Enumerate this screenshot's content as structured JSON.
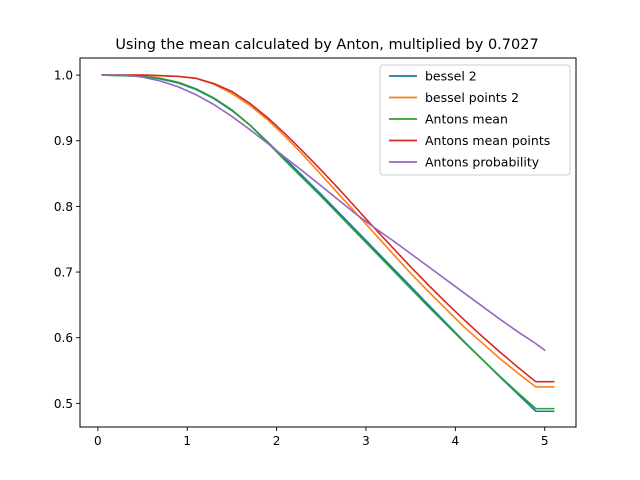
{
  "chart_data": {
    "type": "line",
    "title": "Using the mean calculated by Anton, multiplied by 0.7027",
    "xlabel": "",
    "ylabel": "",
    "xlim": [
      -0.2,
      5.35
    ],
    "ylim": [
      0.464,
      1.026
    ],
    "x_ticks": [
      0,
      1,
      2,
      3,
      4,
      5
    ],
    "y_ticks": [
      0.5,
      0.6,
      0.7,
      0.8,
      0.9,
      1.0
    ],
    "y_tick_labels": [
      "0.5",
      "0.6",
      "0.7",
      "0.8",
      "0.9",
      "1.0"
    ],
    "grid": false,
    "legend_position": "top-right",
    "series": [
      {
        "name": "bessel 2",
        "color": "#1f77b4",
        "x": [
          0.05,
          0.3,
          0.5,
          0.7,
          0.9,
          1.1,
          1.3,
          1.5,
          1.7,
          1.9,
          2.1,
          2.3,
          2.5,
          2.7,
          2.9,
          3.1,
          3.3,
          3.5,
          3.7,
          3.9,
          4.1,
          4.3,
          4.5,
          4.7,
          4.9,
          5.1
        ],
        "y": [
          1.0,
          0.999,
          0.998,
          0.994,
          0.988,
          0.978,
          0.964,
          0.946,
          0.924,
          0.898,
          0.872,
          0.845,
          0.818,
          0.79,
          0.762,
          0.734,
          0.706,
          0.678,
          0.65,
          0.622,
          0.594,
          0.567,
          0.54,
          0.514,
          0.488,
          0.488
        ]
      },
      {
        "name": "bessel points 2",
        "color": "#ff7f0e",
        "x": [
          0.05,
          0.3,
          0.5,
          0.7,
          0.9,
          1.1,
          1.3,
          1.5,
          1.7,
          1.9,
          2.1,
          2.3,
          2.5,
          2.7,
          2.9,
          3.1,
          3.3,
          3.5,
          3.7,
          3.9,
          4.1,
          4.3,
          4.5,
          4.7,
          4.9,
          5.1
        ],
        "y": [
          1.0,
          1.0,
          1.0,
          0.999,
          0.998,
          0.995,
          0.986,
          0.972,
          0.954,
          0.932,
          0.906,
          0.878,
          0.848,
          0.818,
          0.788,
          0.758,
          0.728,
          0.698,
          0.67,
          0.643,
          0.616,
          0.592,
          0.568,
          0.546,
          0.525,
          0.525
        ]
      },
      {
        "name": "Antons mean",
        "color": "#2ca02c",
        "x": [
          0.05,
          0.3,
          0.5,
          0.7,
          0.9,
          1.1,
          1.3,
          1.5,
          1.7,
          1.9,
          2.1,
          2.3,
          2.5,
          2.7,
          2.9,
          3.1,
          3.3,
          3.5,
          3.7,
          3.9,
          4.1,
          4.3,
          4.5,
          4.7,
          4.9,
          5.1
        ],
        "y": [
          1.0,
          0.999,
          0.998,
          0.995,
          0.989,
          0.979,
          0.965,
          0.947,
          0.924,
          0.897,
          0.869,
          0.842,
          0.815,
          0.787,
          0.759,
          0.731,
          0.703,
          0.675,
          0.647,
          0.62,
          0.593,
          0.567,
          0.541,
          0.516,
          0.492,
          0.492
        ]
      },
      {
        "name": "Antons mean points",
        "color": "#d62728",
        "x": [
          0.05,
          0.3,
          0.5,
          0.7,
          0.9,
          1.1,
          1.3,
          1.5,
          1.7,
          1.9,
          2.1,
          2.3,
          2.5,
          2.7,
          2.9,
          3.1,
          3.3,
          3.5,
          3.7,
          3.9,
          4.1,
          4.3,
          4.5,
          4.7,
          4.9,
          5.1
        ],
        "y": [
          1.0,
          1.0,
          1.0,
          0.999,
          0.998,
          0.995,
          0.987,
          0.975,
          0.957,
          0.935,
          0.91,
          0.883,
          0.855,
          0.826,
          0.796,
          0.766,
          0.737,
          0.708,
          0.68,
          0.653,
          0.627,
          0.602,
          0.578,
          0.555,
          0.533,
          0.533
        ]
      },
      {
        "name": "Antons probability",
        "color": "#9467bd",
        "x": [
          0.05,
          0.3,
          0.5,
          0.7,
          0.9,
          1.1,
          1.3,
          1.5,
          1.7,
          1.9,
          2.1,
          2.3,
          2.5,
          2.7,
          2.9,
          3.1,
          3.3,
          3.5,
          3.7,
          3.9,
          4.1,
          4.3,
          4.5,
          4.7,
          4.9,
          5.0
        ],
        "y": [
          1.0,
          1.0,
          0.997,
          0.991,
          0.982,
          0.97,
          0.955,
          0.937,
          0.917,
          0.896,
          0.874,
          0.853,
          0.831,
          0.809,
          0.787,
          0.767,
          0.748,
          0.728,
          0.708,
          0.688,
          0.668,
          0.648,
          0.628,
          0.609,
          0.591,
          0.581
        ]
      }
    ]
  }
}
